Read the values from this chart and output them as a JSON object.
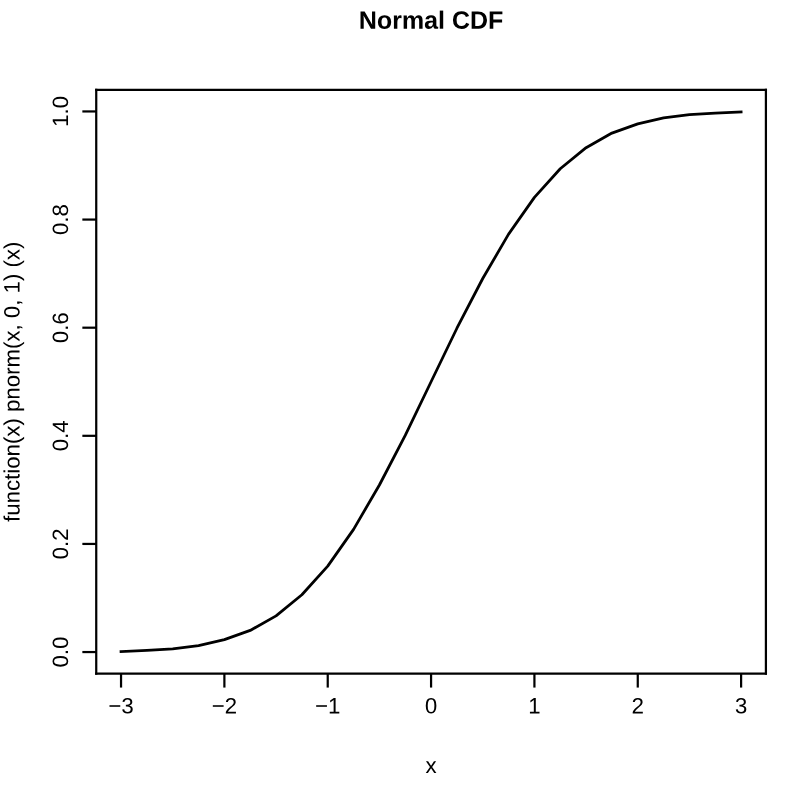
{
  "chart_data": {
    "type": "line",
    "title": "Normal CDF",
    "xlabel": "x",
    "ylabel": "function(x) pnorm(x, 0, 1) (x)",
    "x": [
      -3,
      -2.75,
      -2.5,
      -2.25,
      -2,
      -1.75,
      -1.5,
      -1.25,
      -1,
      -0.75,
      -0.5,
      -0.25,
      0,
      0.25,
      0.5,
      0.75,
      1,
      1.25,
      1.5,
      1.75,
      2,
      2.25,
      2.5,
      2.75,
      3
    ],
    "series": [
      {
        "color": "#000000",
        "values": [
          0.001,
          0.003,
          0.006,
          0.012,
          0.023,
          0.04,
          0.067,
          0.106,
          0.159,
          0.227,
          0.309,
          0.401,
          0.5,
          0.599,
          0.691,
          0.773,
          0.841,
          0.894,
          0.933,
          0.96,
          0.977,
          0.988,
          0.994,
          0.997,
          0.999
        ]
      }
    ],
    "xlim": [
      -3.24,
      3.24
    ],
    "ylim": [
      -0.04,
      1.04
    ],
    "xticks": [
      {
        "value": -3,
        "label": "−3"
      },
      {
        "value": -2,
        "label": "−2"
      },
      {
        "value": -1,
        "label": "−1"
      },
      0,
      1,
      2,
      3
    ],
    "yticks": [
      {
        "value": 0,
        "label": "0.0"
      },
      0.2,
      0.4,
      0.6,
      0.8,
      {
        "value": 1,
        "label": "1.0"
      }
    ],
    "grid": false,
    "legend": false,
    "marker": "none",
    "line_style": "solid"
  }
}
